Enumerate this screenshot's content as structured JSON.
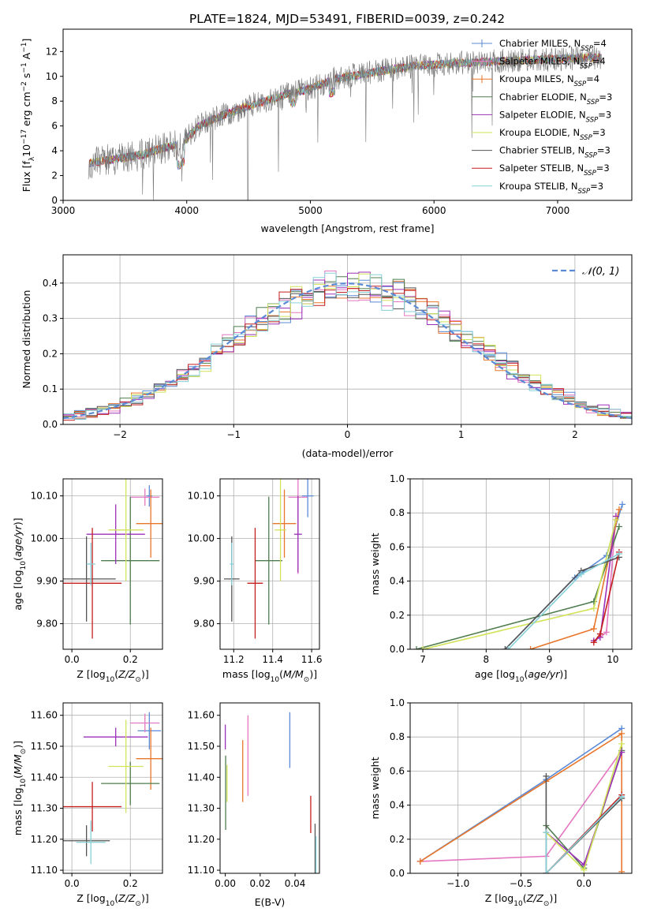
{
  "title": "PLATE=1824, MJD=53491, FIBERID=0039, z=0.242",
  "colors": {
    "Chabrier MILES": "#5b8bd6",
    "Salpeter MILES": "#e377c2",
    "Kroupa MILES": "#e8762b",
    "Chabrier ELODIE": "#4f7d4f",
    "Salpeter ELODIE": "#9b30b8",
    "Kroupa ELODIE": "#d2e35a",
    "Chabrier STELIB": "#555555",
    "Salpeter STELIB": "#c41e1e",
    "Kroupa STELIB": "#86d0d8"
  },
  "legend_spectrum": [
    "Chabrier MILES, N_SSP=4",
    "Salpeter MILES, N_SSP=4",
    "Kroupa MILES, N_SSP=4",
    "Chabrier ELODIE, N_SSP=3",
    "Salpeter ELODIE, N_SSP=3",
    "Kroupa ELODIE, N_SSP=3",
    "Chabrier STELIB, N_SSP=3",
    "Salpeter STELIB, N_SSP=3",
    "Kroupa STELIB, N_SSP=3"
  ],
  "chart_data": [
    {
      "id": "spectrum",
      "type": "line",
      "xlabel": "wavelength [Angstrom, rest frame]",
      "ylabel": "Flux [f_λ 10^-17 erg cm^-2 s^-1 A^-1]",
      "xlim": [
        3000,
        7600
      ],
      "ylim": [
        0,
        13.8
      ],
      "xticks": [
        3000,
        4000,
        5000,
        6000,
        7000
      ],
      "yticks": [
        0,
        2,
        4,
        6,
        8,
        10,
        12
      ],
      "grid": false,
      "legend": "upper right",
      "continuum": [
        [
          3200,
          3.0
        ],
        [
          3400,
          3.3
        ],
        [
          3650,
          3.7
        ],
        [
          3800,
          4.2
        ],
        [
          3950,
          4.5
        ],
        [
          4100,
          6.0
        ],
        [
          4300,
          6.9
        ],
        [
          4500,
          7.6
        ],
        [
          4800,
          8.5
        ],
        [
          5000,
          9.0
        ],
        [
          5200,
          9.8
        ],
        [
          5500,
          10.3
        ],
        [
          5800,
          10.8
        ],
        [
          6100,
          11.0
        ],
        [
          6500,
          11.2
        ],
        [
          7000,
          11.4
        ],
        [
          7300,
          11.5
        ]
      ],
      "series": [
        "Chabrier MILES",
        "Salpeter MILES",
        "Kroupa MILES",
        "Chabrier ELODIE",
        "Salpeter ELODIE",
        "Kroupa ELODIE",
        "Chabrier STELIB",
        "Salpeter STELIB",
        "Kroupa STELIB"
      ]
    },
    {
      "id": "residuals",
      "type": "line",
      "xlabel": "(data-model)/error",
      "ylabel": "Normed distribution",
      "xlim": [
        -2.5,
        2.5
      ],
      "ylim": [
        0,
        0.48
      ],
      "xticks": [
        -2,
        -1,
        0,
        1,
        2
      ],
      "yticks": [
        0.0,
        0.1,
        0.2,
        0.3,
        0.4
      ],
      "grid": true,
      "legend": "upper right",
      "reference": "𝒩(0, 1)",
      "bin_width": 0.1
    },
    {
      "id": "age-vs-Z",
      "type": "scatter",
      "xlabel": "Z [log10(Z/Z⊙)]",
      "ylabel": "age [log10(age/yr)]",
      "xlim": [
        -0.03,
        0.31
      ],
      "ylim": [
        9.74,
        10.14
      ],
      "xticks": [
        0.0,
        0.2
      ],
      "yticks": [
        9.8,
        9.9,
        10.0,
        10.1
      ],
      "grid": true,
      "points": [
        {
          "series": "Chabrier MILES",
          "x": 0.265,
          "y": 10.1,
          "xerr": 0.01,
          "yerr": 0.025
        },
        {
          "series": "Salpeter MILES",
          "x": 0.25,
          "y": 10.097,
          "xerr": 0.05,
          "yerr": 0.02
        },
        {
          "series": "Kroupa MILES",
          "x": 0.27,
          "y": 10.035,
          "xerr": 0.05,
          "yerr": 0.08
        },
        {
          "series": "Chabrier ELODIE",
          "x": 0.2,
          "y": 9.948,
          "xerr": 0.1,
          "yerr": 0.15
        },
        {
          "series": "Salpeter ELODIE",
          "x": 0.15,
          "y": 10.01,
          "xerr": 0.1,
          "yerr": 0.07
        },
        {
          "series": "Kroupa ELODIE",
          "x": 0.185,
          "y": 10.02,
          "xerr": 0.06,
          "yerr": 0.12
        },
        {
          "series": "Chabrier STELIB",
          "x": 0.05,
          "y": 9.905,
          "xerr": 0.1,
          "yerr": 0.1
        },
        {
          "series": "Salpeter STELIB",
          "x": 0.07,
          "y": 9.895,
          "xerr": 0.1,
          "yerr": 0.13
        },
        {
          "series": "Kroupa STELIB",
          "x": 0.065,
          "y": 9.94,
          "xerr": 0.015,
          "yerr": 0.05
        }
      ]
    },
    {
      "id": "age-vs-mass",
      "type": "scatter",
      "xlabel": "mass [log10(M/M⊙)]",
      "ylabel": "",
      "xlim": [
        11.13,
        11.64
      ],
      "ylim": [
        9.74,
        10.14
      ],
      "xticks": [
        11.2,
        11.4,
        11.6
      ],
      "yticks": [
        9.8,
        9.9,
        10.0,
        10.1
      ],
      "grid": true,
      "points": [
        {
          "series": "Chabrier MILES",
          "x": 11.58,
          "y": 10.1,
          "xerr": 0.03,
          "yerr": 0.05
        },
        {
          "series": "Salpeter MILES",
          "x": 11.53,
          "y": 10.097,
          "xerr": 0.05,
          "yerr": 0.18
        },
        {
          "series": "Kroupa MILES",
          "x": 11.46,
          "y": 10.035,
          "xerr": 0.06,
          "yerr": 0.08
        },
        {
          "series": "Chabrier ELODIE",
          "x": 11.38,
          "y": 9.948,
          "xerr": 0.07,
          "yerr": 0.15
        },
        {
          "series": "Salpeter ELODIE",
          "x": 11.53,
          "y": 10.01,
          "xerr": 0.02,
          "yerr": 0.09
        },
        {
          "series": "Kroupa ELODIE",
          "x": 11.44,
          "y": 10.02,
          "xerr": 0.03,
          "yerr": 0.12
        },
        {
          "series": "Chabrier STELIB",
          "x": 11.19,
          "y": 9.905,
          "xerr": 0.04,
          "yerr": 0.1
        },
        {
          "series": "Salpeter STELIB",
          "x": 11.31,
          "y": 9.895,
          "xerr": 0.04,
          "yerr": 0.13
        },
        {
          "series": "Kroupa STELIB",
          "x": 11.19,
          "y": 9.94,
          "xerr": 0.01,
          "yerr": 0.05
        }
      ]
    },
    {
      "id": "mass-weight-vs-age",
      "type": "line",
      "xlabel": "age [log10(age/yr)]",
      "ylabel": "mass weight",
      "xlim": [
        6.8,
        10.3
      ],
      "ylim": [
        0,
        1.0
      ],
      "xticks": [
        7,
        8,
        9,
        10
      ],
      "yticks": [
        0.0,
        0.2,
        0.4,
        0.6,
        0.8,
        1.0
      ],
      "grid": true,
      "series": [
        {
          "name": "Chabrier MILES",
          "x": [
            8.3,
            9.4,
            9.9,
            10.15
          ],
          "y": [
            0.0,
            0.42,
            0.55,
            0.85
          ]
        },
        {
          "name": "Salpeter MILES",
          "x": [
            9.8,
            9.9,
            10.05
          ],
          "y": [
            0.07,
            0.1,
            0.78
          ]
        },
        {
          "name": "Kroupa MILES",
          "x": [
            8.7,
            9.7,
            10.1
          ],
          "y": [
            0.0,
            0.12,
            0.82
          ]
        },
        {
          "name": "Chabrier ELODIE",
          "x": [
            6.9,
            9.7,
            10.1
          ],
          "y": [
            0.0,
            0.28,
            0.72
          ]
        },
        {
          "name": "Salpeter ELODIE",
          "x": [
            9.7,
            9.8,
            10.05
          ],
          "y": [
            0.05,
            0.07,
            0.78
          ]
        },
        {
          "name": "Kroupa ELODIE",
          "x": [
            7.0,
            9.7,
            10.05
          ],
          "y": [
            0.0,
            0.24,
            0.76
          ]
        },
        {
          "name": "Chabrier STELIB",
          "x": [
            8.3,
            9.5,
            10.1
          ],
          "y": [
            0.0,
            0.46,
            0.54
          ]
        },
        {
          "name": "Salpeter STELIB",
          "x": [
            9.7,
            9.8,
            10.1
          ],
          "y": [
            0.04,
            0.09,
            0.57
          ]
        },
        {
          "name": "Kroupa STELIB",
          "x": [
            8.35,
            9.5,
            10.1
          ],
          "y": [
            0.0,
            0.44,
            0.56
          ]
        }
      ]
    },
    {
      "id": "mass-vs-Z",
      "type": "scatter",
      "xlabel": "Z [log10(Z/Z⊙)]",
      "ylabel": "mass [log10(M/M⊙)]",
      "xlim": [
        -0.03,
        0.31
      ],
      "ylim": [
        11.09,
        11.64
      ],
      "xticks": [
        0.0,
        0.2
      ],
      "yticks": [
        11.1,
        11.2,
        11.3,
        11.4,
        11.5,
        11.6
      ],
      "grid": true,
      "points": [
        {
          "series": "Chabrier MILES",
          "x": 0.265,
          "y": 11.55,
          "xerr": 0.04,
          "yerr": 0.06
        },
        {
          "series": "Salpeter MILES",
          "x": 0.25,
          "y": 11.575,
          "xerr": 0.05,
          "yerr": 0.03
        },
        {
          "series": "Kroupa MILES",
          "x": 0.27,
          "y": 11.46,
          "xerr": 0.05,
          "yerr": 0.1
        },
        {
          "series": "Chabrier ELODIE",
          "x": 0.2,
          "y": 11.38,
          "xerr": 0.1,
          "yerr": 0.07
        },
        {
          "series": "Salpeter ELODIE",
          "x": 0.15,
          "y": 11.53,
          "xerr": 0.11,
          "yerr": 0.03
        },
        {
          "series": "Kroupa ELODIE",
          "x": 0.185,
          "y": 11.435,
          "xerr": 0.06,
          "yerr": 0.15
        },
        {
          "series": "Chabrier STELIB",
          "x": 0.05,
          "y": 11.195,
          "xerr": 0.08,
          "yerr": 0.05
        },
        {
          "series": "Salpeter STELIB",
          "x": 0.07,
          "y": 11.305,
          "xerr": 0.1,
          "yerr": 0.08
        },
        {
          "series": "Kroupa STELIB",
          "x": 0.065,
          "y": 11.19,
          "xerr": 0.05,
          "yerr": 0.07
        }
      ]
    },
    {
      "id": "mass-vs-EBV",
      "type": "scatter",
      "xlabel": "E(B-V)",
      "ylabel": "",
      "xlim": [
        -0.003,
        0.054
      ],
      "ylim": [
        11.09,
        11.64
      ],
      "xticks": [
        0.0,
        0.02,
        0.04
      ],
      "yticks": [
        11.1,
        11.2,
        11.3,
        11.4,
        11.5,
        11.6
      ],
      "grid": false,
      "points": [
        {
          "series": "Chabrier MILES",
          "x": 0.037,
          "y": 11.52,
          "yerr": 0.09
        },
        {
          "series": "Salpeter MILES",
          "x": 0.013,
          "y": 11.47,
          "yerr": 0.13
        },
        {
          "series": "Kroupa MILES",
          "x": 0.01,
          "y": 11.42,
          "yerr": 0.1
        },
        {
          "series": "Chabrier ELODIE",
          "x": 0.0002,
          "y": 11.35,
          "yerr": 0.12
        },
        {
          "series": "Salpeter ELODIE",
          "x": 0.0,
          "y": 11.53,
          "yerr": 0.04
        },
        {
          "series": "Kroupa ELODIE",
          "x": 0.001,
          "y": 11.38,
          "yerr": 0.06
        },
        {
          "series": "Chabrier STELIB",
          "x": 0.0515,
          "y": 11.17,
          "yerr": 0.08
        },
        {
          "series": "Salpeter STELIB",
          "x": 0.049,
          "y": 11.28,
          "yerr": 0.06
        },
        {
          "series": "Kroupa STELIB",
          "x": 0.052,
          "y": 11.15,
          "yerr": 0.06
        }
      ]
    },
    {
      "id": "mass-weight-vs-Z",
      "type": "line",
      "xlabel": "Z [log10(Z/Z⊙)]",
      "ylabel": "mass weight",
      "xlim": [
        -1.38,
        0.38
      ],
      "ylim": [
        0,
        1.0
      ],
      "xticks": [
        -1.0,
        -0.5,
        0.0
      ],
      "yticks": [
        0.0,
        0.2,
        0.4,
        0.6,
        0.8,
        1.0
      ],
      "grid": true,
      "series": [
        {
          "name": "Chabrier MILES",
          "x": [
            -1.3,
            -0.3,
            0.3
          ],
          "y": [
            0.07,
            0.55,
            0.85
          ]
        },
        {
          "name": "Salpeter MILES",
          "x": [
            -1.3,
            -0.3,
            0.3
          ],
          "y": [
            0.07,
            0.1,
            0.72
          ]
        },
        {
          "name": "Kroupa MILES",
          "x": [
            -1.3,
            -0.3,
            0.3,
            0.3
          ],
          "y": [
            0.07,
            0.54,
            0.82,
            0.01
          ]
        },
        {
          "name": "Chabrier ELODIE",
          "x": [
            -0.3,
            0.0,
            0.3
          ],
          "y": [
            0.28,
            0.03,
            0.72
          ]
        },
        {
          "name": "Salpeter ELODIE",
          "x": [
            -0.3,
            0.0,
            0.3
          ],
          "y": [
            0.24,
            0.05,
            0.71
          ]
        },
        {
          "name": "Kroupa ELODIE",
          "x": [
            -0.3,
            0.0,
            0.3
          ],
          "y": [
            0.24,
            0.02,
            0.76
          ]
        },
        {
          "name": "Chabrier STELIB",
          "x": [
            -0.3,
            -0.3,
            0.3
          ],
          "y": [
            0.57,
            0.0,
            0.44
          ]
        },
        {
          "name": "Salpeter STELIB",
          "x": [
            -0.3,
            0.3
          ],
          "y": [
            0.0,
            0.46
          ]
        },
        {
          "name": "Kroupa STELIB",
          "x": [
            -0.3,
            -0.3,
            0.3
          ],
          "y": [
            0.24,
            0.0,
            0.45
          ]
        }
      ]
    }
  ]
}
